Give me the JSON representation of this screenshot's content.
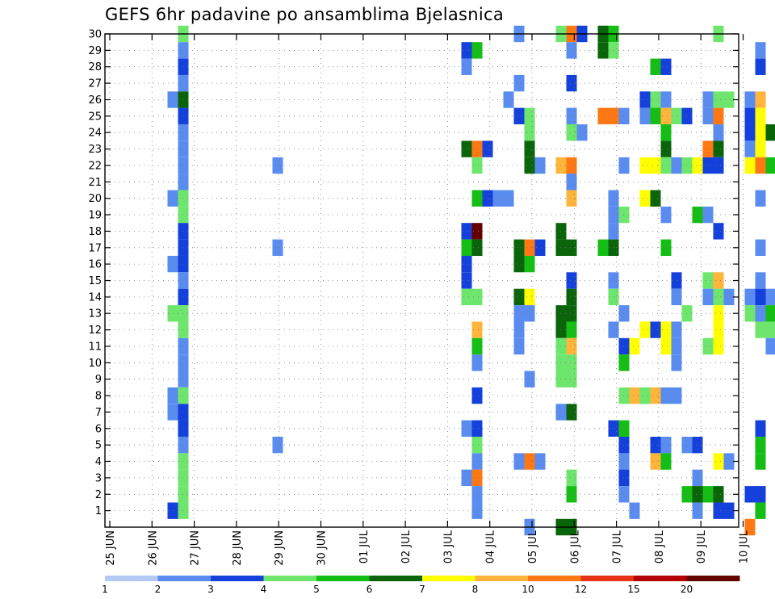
{
  "chart_data": {
    "type": "heatmap",
    "title": "GEFS 6hr padavine po ansamblima Bjelasnica",
    "xlabel": "",
    "ylabel": "",
    "ylim": [
      0,
      30
    ],
    "y_ticks": [
      1,
      2,
      3,
      4,
      5,
      6,
      7,
      8,
      9,
      10,
      11,
      12,
      13,
      14,
      15,
      16,
      17,
      18,
      19,
      20,
      21,
      22,
      23,
      24,
      25,
      26,
      27,
      28,
      29,
      30
    ],
    "x_tick_labels": [
      "25 JUN",
      "26 JUN",
      "27 JUN",
      "28 JUN",
      "29 JUN",
      "30 JUN",
      "01 JUL",
      "02 JUL",
      "03 JUL",
      "04 JUL",
      "05 JUL",
      "06 JUL",
      "07 JUL",
      "08 JUL",
      "09 JUL",
      "10 JUL"
    ],
    "steps_per_day": 4,
    "grid": true,
    "colorbar": {
      "position": "bottom",
      "boundaries": [
        "1",
        "2",
        "3",
        "4",
        "5",
        "6",
        "7",
        "8",
        "10",
        "12",
        "15",
        "20"
      ],
      "colors": [
        "#b4c8f4",
        "#5a8cf0",
        "#1440dc",
        "#6ee66e",
        "#14be14",
        "#0a640a",
        "#ffff00",
        "#ffb43c",
        "#ff7814",
        "#e63214",
        "#b40000",
        "#640000"
      ]
    },
    "cells": [
      [
        30,
        7,
        3
      ],
      [
        29,
        7,
        1
      ],
      [
        28,
        7,
        2
      ],
      [
        27,
        7,
        1
      ],
      [
        26,
        7,
        5
      ],
      [
        25,
        7,
        2
      ],
      [
        24,
        7,
        1
      ],
      [
        23,
        7,
        1
      ],
      [
        22,
        7,
        1
      ],
      [
        21,
        7,
        1
      ],
      [
        20,
        7,
        3
      ],
      [
        19,
        7,
        3
      ],
      [
        18,
        7,
        2
      ],
      [
        17,
        7,
        2
      ],
      [
        16,
        7,
        2
      ],
      [
        15,
        7,
        1
      ],
      [
        14,
        7,
        2
      ],
      [
        13,
        7,
        3
      ],
      [
        12,
        7,
        3
      ],
      [
        11,
        7,
        1
      ],
      [
        10,
        7,
        1
      ],
      [
        9,
        7,
        1
      ],
      [
        8,
        7,
        3
      ],
      [
        7,
        7,
        2
      ],
      [
        6,
        7,
        2
      ],
      [
        5,
        7,
        1
      ],
      [
        4,
        7,
        3
      ],
      [
        3,
        7,
        3
      ],
      [
        2,
        7,
        3
      ],
      [
        1,
        7,
        3
      ],
      [
        26,
        6,
        1
      ],
      [
        20,
        6,
        1
      ],
      [
        16,
        6,
        1
      ],
      [
        13,
        6,
        3
      ],
      [
        8,
        6,
        1
      ],
      [
        7,
        6,
        1
      ],
      [
        1,
        6,
        2
      ],
      [
        22,
        16,
        1
      ],
      [
        17,
        16,
        1
      ],
      [
        5,
        16,
        1
      ],
      [
        29,
        34,
        2
      ],
      [
        29,
        35,
        4
      ],
      [
        28,
        34,
        1
      ],
      [
        23,
        34,
        5
      ],
      [
        23,
        35,
        8
      ],
      [
        23,
        36,
        2
      ],
      [
        22,
        35,
        3
      ],
      [
        20,
        35,
        4
      ],
      [
        20,
        36,
        2
      ],
      [
        20,
        37,
        1
      ],
      [
        20,
        38,
        1
      ],
      [
        18,
        34,
        2
      ],
      [
        18,
        35,
        11
      ],
      [
        17,
        34,
        4
      ],
      [
        17,
        35,
        5
      ],
      [
        16,
        34,
        2
      ],
      [
        15,
        34,
        2
      ],
      [
        14,
        34,
        3
      ],
      [
        14,
        35,
        3
      ],
      [
        12,
        35,
        7
      ],
      [
        11,
        35,
        4
      ],
      [
        10,
        35,
        1
      ],
      [
        8,
        35,
        2
      ],
      [
        6,
        34,
        1
      ],
      [
        6,
        35,
        2
      ],
      [
        5,
        35,
        3
      ],
      [
        4,
        35,
        1
      ],
      [
        3,
        34,
        1
      ],
      [
        3,
        35,
        8
      ],
      [
        2,
        35,
        1
      ],
      [
        1,
        35,
        1
      ],
      [
        30,
        39,
        1
      ],
      [
        27,
        39,
        1
      ],
      [
        26,
        38,
        1
      ],
      [
        25,
        39,
        2
      ],
      [
        25,
        40,
        3
      ],
      [
        24,
        40,
        3
      ],
      [
        23,
        40,
        5
      ],
      [
        22,
        40,
        5
      ],
      [
        22,
        41,
        1
      ],
      [
        17,
        39,
        5
      ],
      [
        17,
        40,
        8
      ],
      [
        17,
        41,
        2
      ],
      [
        16,
        39,
        5
      ],
      [
        16,
        40,
        4
      ],
      [
        14,
        39,
        5
      ],
      [
        14,
        40,
        6
      ],
      [
        13,
        39,
        1
      ],
      [
        13,
        40,
        1
      ],
      [
        12,
        39,
        1
      ],
      [
        11,
        39,
        1
      ],
      [
        9,
        40,
        1
      ],
      [
        4,
        39,
        1
      ],
      [
        4,
        40,
        8
      ],
      [
        4,
        41,
        1
      ],
      [
        0,
        40,
        1
      ],
      [
        30,
        43,
        3
      ],
      [
        30,
        44,
        8
      ],
      [
        30,
        45,
        2
      ],
      [
        29,
        44,
        1
      ],
      [
        27,
        44,
        2
      ],
      [
        25,
        44,
        1
      ],
      [
        24,
        44,
        3
      ],
      [
        24,
        45,
        1
      ],
      [
        22,
        43,
        7
      ],
      [
        22,
        44,
        8
      ],
      [
        21,
        44,
        1
      ],
      [
        20,
        44,
        7
      ],
      [
        18,
        43,
        5
      ],
      [
        17,
        43,
        5
      ],
      [
        17,
        44,
        5
      ],
      [
        15,
        44,
        2
      ],
      [
        14,
        44,
        5
      ],
      [
        13,
        43,
        5
      ],
      [
        13,
        44,
        5
      ],
      [
        12,
        43,
        5
      ],
      [
        12,
        44,
        4
      ],
      [
        11,
        43,
        3
      ],
      [
        11,
        44,
        7
      ],
      [
        10,
        43,
        3
      ],
      [
        10,
        44,
        3
      ],
      [
        9,
        43,
        3
      ],
      [
        9,
        44,
        3
      ],
      [
        7,
        43,
        1
      ],
      [
        7,
        44,
        5
      ],
      [
        3,
        44,
        3
      ],
      [
        2,
        44,
        4
      ],
      [
        0,
        43,
        5
      ],
      [
        0,
        44,
        5
      ],
      [
        30,
        47,
        5
      ],
      [
        30,
        48,
        4
      ],
      [
        29,
        47,
        5
      ],
      [
        29,
        48,
        3
      ],
      [
        25,
        47,
        8
      ],
      [
        25,
        48,
        8
      ],
      [
        25,
        49,
        1
      ],
      [
        22,
        49,
        1
      ],
      [
        20,
        48,
        1
      ],
      [
        19,
        48,
        1
      ],
      [
        19,
        49,
        3
      ],
      [
        18,
        48,
        1
      ],
      [
        17,
        47,
        4
      ],
      [
        17,
        48,
        5
      ],
      [
        15,
        48,
        1
      ],
      [
        14,
        48,
        3
      ],
      [
        13,
        49,
        1
      ],
      [
        12,
        48,
        1
      ],
      [
        11,
        49,
        2
      ],
      [
        11,
        50,
        6
      ],
      [
        10,
        49,
        4
      ],
      [
        8,
        49,
        3
      ],
      [
        8,
        50,
        7
      ],
      [
        8,
        51,
        1
      ],
      [
        6,
        48,
        2
      ],
      [
        6,
        49,
        4
      ],
      [
        5,
        49,
        2
      ],
      [
        4,
        49,
        1
      ],
      [
        3,
        49,
        2
      ],
      [
        2,
        49,
        1
      ],
      [
        1,
        50,
        1
      ],
      [
        28,
        52,
        4
      ],
      [
        28,
        53,
        2
      ],
      [
        26,
        51,
        2
      ],
      [
        26,
        52,
        3
      ],
      [
        26,
        53,
        1
      ],
      [
        25,
        51,
        1
      ],
      [
        25,
        52,
        4
      ],
      [
        25,
        53,
        7
      ],
      [
        25,
        54,
        3
      ],
      [
        25,
        55,
        2
      ],
      [
        24,
        53,
        4
      ],
      [
        23,
        53,
        5
      ],
      [
        22,
        51,
        6
      ],
      [
        22,
        52,
        6
      ],
      [
        22,
        53,
        3
      ],
      [
        22,
        54,
        1
      ],
      [
        22,
        55,
        3
      ],
      [
        22,
        56,
        6
      ],
      [
        22,
        57,
        2
      ],
      [
        20,
        51,
        6
      ],
      [
        20,
        52,
        5
      ],
      [
        19,
        53,
        1
      ],
      [
        17,
        53,
        4
      ],
      [
        15,
        54,
        2
      ],
      [
        14,
        54,
        1
      ],
      [
        13,
        55,
        3
      ],
      [
        12,
        51,
        6
      ],
      [
        12,
        52,
        2
      ],
      [
        12,
        53,
        6
      ],
      [
        12,
        54,
        1
      ],
      [
        11,
        53,
        6
      ],
      [
        11,
        54,
        1
      ],
      [
        10,
        54,
        1
      ],
      [
        8,
        51,
        3
      ],
      [
        8,
        52,
        7
      ],
      [
        8,
        53,
        1
      ],
      [
        8,
        54,
        1
      ],
      [
        5,
        52,
        2
      ],
      [
        5,
        53,
        1
      ],
      [
        5,
        55,
        1
      ],
      [
        5,
        56,
        2
      ],
      [
        4,
        52,
        7
      ],
      [
        4,
        53,
        4
      ],
      [
        3,
        56,
        1
      ],
      [
        2,
        55,
        4
      ],
      [
        2,
        56,
        5
      ],
      [
        1,
        56,
        1
      ],
      [
        30,
        58,
        3
      ],
      [
        26,
        57,
        1
      ],
      [
        26,
        58,
        3
      ],
      [
        26,
        59,
        3
      ],
      [
        25,
        57,
        1
      ],
      [
        25,
        58,
        8
      ],
      [
        24,
        58,
        1
      ],
      [
        23,
        57,
        8
      ],
      [
        23,
        58,
        5
      ],
      [
        22,
        58,
        2
      ],
      [
        19,
        56,
        4
      ],
      [
        19,
        57,
        1
      ],
      [
        18,
        58,
        2
      ],
      [
        15,
        57,
        3
      ],
      [
        15,
        58,
        7
      ],
      [
        14,
        57,
        1
      ],
      [
        14,
        58,
        3
      ],
      [
        14,
        59,
        1
      ],
      [
        13,
        58,
        6
      ],
      [
        12,
        58,
        6
      ],
      [
        11,
        57,
        3
      ],
      [
        11,
        58,
        6
      ],
      [
        4,
        58,
        6
      ],
      [
        4,
        59,
        1
      ],
      [
        2,
        57,
        4
      ],
      [
        2,
        58,
        5
      ],
      [
        1,
        58,
        2
      ],
      [
        1,
        59,
        2
      ],
      [
        0,
        61,
        8
      ],
      [
        29,
        62,
        1
      ],
      [
        28,
        62,
        2
      ],
      [
        26,
        61,
        1
      ],
      [
        26,
        62,
        7
      ],
      [
        25,
        61,
        2
      ],
      [
        25,
        62,
        6
      ],
      [
        24,
        61,
        2
      ],
      [
        24,
        62,
        6
      ],
      [
        24,
        63,
        5
      ],
      [
        23,
        61,
        1
      ],
      [
        23,
        62,
        6
      ],
      [
        22,
        61,
        6
      ],
      [
        22,
        62,
        8
      ],
      [
        22,
        63,
        4
      ],
      [
        20,
        62,
        1
      ],
      [
        17,
        62,
        1
      ],
      [
        15,
        62,
        1
      ],
      [
        14,
        61,
        1
      ],
      [
        14,
        62,
        2
      ],
      [
        14,
        63,
        1
      ],
      [
        13,
        61,
        3
      ],
      [
        13,
        62,
        1
      ],
      [
        13,
        63,
        4
      ],
      [
        12,
        62,
        3
      ],
      [
        12,
        63,
        3
      ],
      [
        12,
        64,
        3
      ],
      [
        11,
        63,
        1
      ],
      [
        11,
        64,
        1
      ],
      [
        6,
        62,
        2
      ],
      [
        5,
        62,
        4
      ],
      [
        4,
        62,
        4
      ],
      [
        2,
        61,
        2
      ],
      [
        2,
        62,
        2
      ],
      [
        1,
        62,
        4
      ]
    ]
  }
}
